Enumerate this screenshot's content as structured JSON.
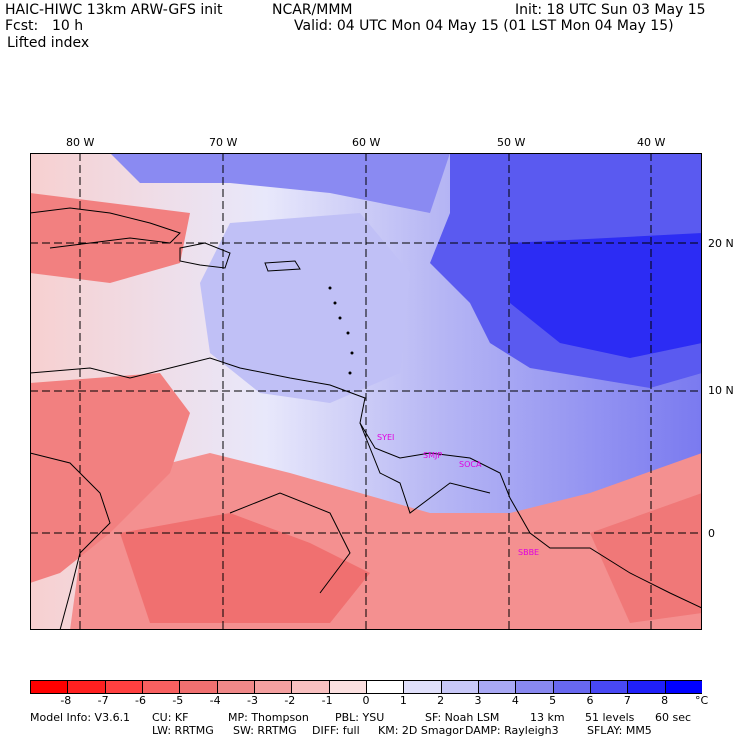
{
  "header": {
    "model_title": "HAIC-HIWC 13km ARW-GFS init",
    "institution": "NCAR/MMM",
    "init_label": "Init: 18 UTC Sun 03 May 15",
    "fcst_label": "Fcst:",
    "fcst_value": "10 h",
    "valid_label": "Valid: 04 UTC Mon 04 May 15 (01 LST Mon 04 May 15)",
    "field_name": "Lifted index"
  },
  "map": {
    "lon_labels": [
      "80 W",
      "70 W",
      "60 W",
      "50 W",
      "40 W"
    ],
    "lat_labels": [
      "20 N",
      "10 N",
      "0"
    ],
    "stations": [
      "SYEI",
      "SMJP",
      "SOCA",
      "SBBE"
    ]
  },
  "colorbar": {
    "ticks": [
      "-8",
      "-7",
      "-6",
      "-5",
      "-4",
      "-3",
      "-2",
      "-1",
      "0",
      "1",
      "2",
      "3",
      "4",
      "5",
      "6",
      "7",
      "8"
    ],
    "unit": "°C",
    "colors": [
      "#ff0000",
      "#ff2020",
      "#ff4040",
      "#f86060",
      "#f07070",
      "#f08888",
      "#f4a0a0",
      "#f8c0c0",
      "#fbe0e0",
      "#ffffff",
      "#e0e0fb",
      "#c8c8f8",
      "#a8a8f4",
      "#8888f0",
      "#6868f0",
      "#4848f4",
      "#2020fa",
      "#0000ff"
    ]
  },
  "footer": {
    "line1": [
      {
        "k": "Model Info: V3.6.1"
      },
      {
        "k": "CU: KF"
      },
      {
        "k": "MP: Thompson"
      },
      {
        "k": "PBL: YSU"
      },
      {
        "k": "SF: Noah LSM"
      },
      {
        "k": "13 km"
      },
      {
        "k": "51 levels"
      },
      {
        "k": "60 sec"
      }
    ],
    "line2": [
      {
        "k": "LW: RRTMG"
      },
      {
        "k": "SW: RRTMG"
      },
      {
        "k": "DIFF: full"
      },
      {
        "k": "KM: 2D Smagor"
      },
      {
        "k": "DAMP: Rayleigh3"
      },
      {
        "k": "SFLAY: MM5"
      }
    ]
  }
}
